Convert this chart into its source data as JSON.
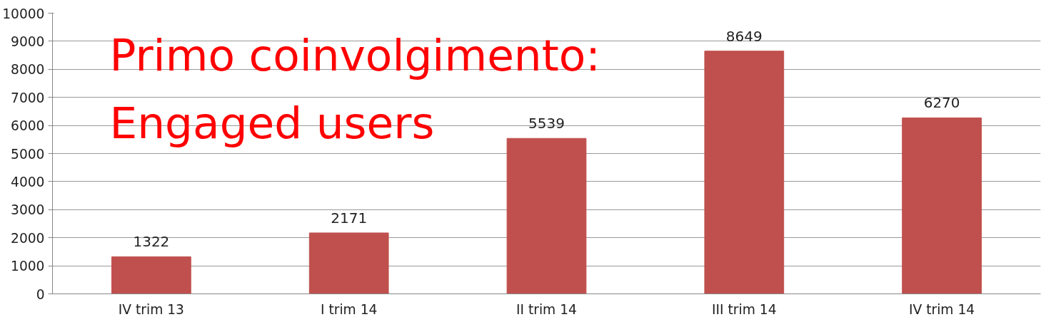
{
  "chart_data": {
    "type": "bar",
    "title": "Primo coinvolgimento:\nEngaged users",
    "categories": [
      "IV trim 13",
      "I trim 14",
      "II trim 14",
      "III trim 14",
      "IV trim 14"
    ],
    "values": [
      1322,
      2171,
      5539,
      8649,
      6270
    ],
    "color": "#c0504d",
    "ylim": [
      0,
      10000
    ],
    "yticks": [
      0,
      1000,
      2000,
      3000,
      4000,
      5000,
      6000,
      7000,
      8000,
      9000,
      10000
    ],
    "grid": "y",
    "data_labels": true
  }
}
